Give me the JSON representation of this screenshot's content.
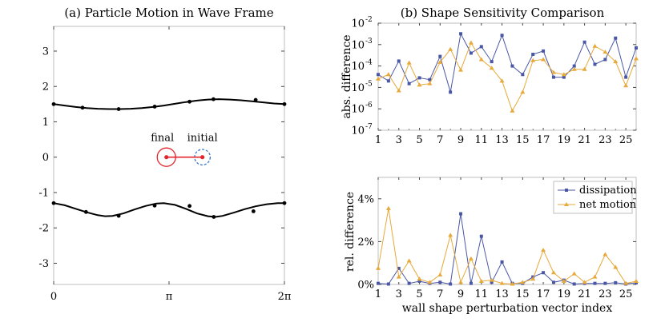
{
  "chart_data": [
    {
      "type": "line",
      "title": "(a) Particle Motion in Wave Frame",
      "xlim": [
        0,
        6.2832
      ],
      "ylim": [
        -3.6,
        3.7
      ],
      "xticks": [
        {
          "value": 0,
          "label": "0"
        },
        {
          "value": 3.1416,
          "label": "π"
        },
        {
          "value": 6.2832,
          "label": "2π"
        }
      ],
      "yticks": [
        {
          "value": 3,
          "label": "3"
        },
        {
          "value": 2,
          "label": "2"
        },
        {
          "value": 1,
          "label": "1"
        },
        {
          "value": 0,
          "label": "0"
        },
        {
          "value": -1,
          "label": "-1"
        },
        {
          "value": -2,
          "label": "-2"
        },
        {
          "value": -3,
          "label": "-3"
        }
      ],
      "upper_wall": {
        "curve": [
          [
            0,
            1.5
          ],
          [
            0.3,
            1.46
          ],
          [
            0.6,
            1.42
          ],
          [
            0.9,
            1.39
          ],
          [
            1.2,
            1.37
          ],
          [
            1.5,
            1.36
          ],
          [
            1.8,
            1.36
          ],
          [
            2.1,
            1.37
          ],
          [
            2.4,
            1.39
          ],
          [
            2.7,
            1.42
          ],
          [
            3.0,
            1.46
          ],
          [
            3.3,
            1.51
          ],
          [
            3.6,
            1.56
          ],
          [
            3.9,
            1.6
          ],
          [
            4.2,
            1.63
          ],
          [
            4.5,
            1.64
          ],
          [
            4.8,
            1.63
          ],
          [
            5.1,
            1.61
          ],
          [
            5.4,
            1.58
          ],
          [
            5.7,
            1.55
          ],
          [
            6.0,
            1.52
          ],
          [
            6.2832,
            1.5
          ]
        ],
        "markers": [
          [
            0,
            1.5
          ],
          [
            0.785,
            1.4
          ],
          [
            1.77,
            1.36
          ],
          [
            2.75,
            1.43
          ],
          [
            3.7,
            1.57
          ],
          [
            4.35,
            1.64
          ],
          [
            5.5,
            1.62
          ],
          [
            6.2832,
            1.5
          ]
        ]
      },
      "lower_wall": {
        "curve": [
          [
            0,
            -1.3
          ],
          [
            0.3,
            -1.36
          ],
          [
            0.6,
            -1.46
          ],
          [
            0.9,
            -1.56
          ],
          [
            1.2,
            -1.64
          ],
          [
            1.4,
            -1.67
          ],
          [
            1.6,
            -1.66
          ],
          [
            1.9,
            -1.59
          ],
          [
            2.2,
            -1.48
          ],
          [
            2.5,
            -1.38
          ],
          [
            2.8,
            -1.31
          ],
          [
            3.0,
            -1.3
          ],
          [
            3.3,
            -1.35
          ],
          [
            3.6,
            -1.46
          ],
          [
            3.9,
            -1.59
          ],
          [
            4.2,
            -1.67
          ],
          [
            4.4,
            -1.69
          ],
          [
            4.6,
            -1.66
          ],
          [
            4.9,
            -1.57
          ],
          [
            5.2,
            -1.47
          ],
          [
            5.5,
            -1.39
          ],
          [
            5.8,
            -1.33
          ],
          [
            6.1,
            -1.3
          ],
          [
            6.2832,
            -1.3
          ]
        ],
        "markers": [
          [
            0,
            -1.3
          ],
          [
            0.88,
            -1.55
          ],
          [
            1.77,
            -1.66
          ],
          [
            2.75,
            -1.37
          ],
          [
            3.7,
            -1.38
          ],
          [
            4.36,
            -1.69
          ],
          [
            5.44,
            -1.53
          ],
          [
            6.2832,
            -1.3
          ]
        ]
      },
      "final": {
        "label": "final",
        "x": 3.07,
        "y": 0.0,
        "radius": 0.26
      },
      "initial": {
        "label": "initial",
        "x": 4.05,
        "y": 0.0,
        "radius": 0.22
      },
      "colors": {
        "wall": "#000000",
        "final": "#e3242b",
        "initial": "#3a78c9"
      }
    },
    {
      "type": "line",
      "title": "(b) Shape Sensitivity Comparison",
      "ylabel": "abs. difference",
      "yscale": "log",
      "ylim": [
        1e-07,
        0.01
      ],
      "xlim": [
        1,
        26
      ],
      "yticks": [
        {
          "value": 1e-07,
          "label": "10"
        },
        {
          "value": 1e-06,
          "label": "10"
        },
        {
          "value": 1e-05,
          "label": "10"
        },
        {
          "value": 0.0001,
          "label": "10"
        },
        {
          "value": 0.001,
          "label": "10"
        },
        {
          "value": 0.01,
          "label": "10"
        }
      ],
      "yexps": [
        "-7",
        "-6",
        "-5",
        "-4",
        "-3",
        "-2"
      ],
      "xticks": [
        1,
        3,
        5,
        7,
        9,
        11,
        13,
        15,
        17,
        19,
        21,
        23,
        25
      ],
      "x": [
        1,
        2,
        3,
        4,
        5,
        6,
        7,
        8,
        9,
        10,
        11,
        12,
        13,
        14,
        15,
        16,
        17,
        18,
        19,
        20,
        21,
        22,
        23,
        24,
        25,
        26
      ],
      "series": [
        {
          "name": "dissipation",
          "color": "#4a57a5",
          "marker": "square",
          "values": [
            4e-05,
            2e-05,
            0.00017,
            1.5e-05,
            2.8e-05,
            2.3e-05,
            0.00028,
            6e-06,
            0.0032,
            0.0004,
            0.0008,
            0.00016,
            0.0027,
            0.0001,
            4e-05,
            0.00035,
            0.0005,
            3e-05,
            3e-05,
            0.0001,
            0.0013,
            0.00012,
            0.0002,
            0.002,
            3e-05,
            0.0007
          ]
        },
        {
          "name": "net motion",
          "color": "#e6a93a",
          "marker": "triangle",
          "values": [
            2.5e-05,
            4e-05,
            7e-06,
            0.00014,
            1.3e-05,
            1.5e-05,
            0.00015,
            0.0006,
            6.5e-05,
            0.0012,
            0.0002,
            8e-05,
            2e-05,
            8e-07,
            6e-06,
            0.00018,
            0.0002,
            5e-05,
            4e-05,
            7e-05,
            7e-05,
            0.00085,
            0.00045,
            0.00016,
            1.2e-05,
            0.00022
          ]
        }
      ]
    },
    {
      "type": "line",
      "ylabel": "rel. difference",
      "xlabel": "wall shape perturbation vector index",
      "xlim": [
        1,
        26
      ],
      "ylim": [
        0,
        5
      ],
      "yticks": [
        {
          "value": 0,
          "label": "0%"
        },
        {
          "value": 2,
          "label": "2%"
        },
        {
          "value": 4,
          "label": "4%"
        }
      ],
      "xticks": [
        1,
        3,
        5,
        7,
        9,
        11,
        13,
        15,
        17,
        19,
        21,
        23,
        25
      ],
      "x": [
        1,
        2,
        3,
        4,
        5,
        6,
        7,
        8,
        9,
        10,
        11,
        12,
        13,
        14,
        15,
        16,
        17,
        18,
        19,
        20,
        21,
        22,
        23,
        24,
        25,
        26
      ],
      "legend": {
        "position": "top-right"
      },
      "series": [
        {
          "name": "dissipation",
          "color": "#4a57a5",
          "marker": "square",
          "values": [
            0.05,
            0.02,
            0.75,
            0.05,
            0.15,
            0.05,
            0.1,
            0.02,
            3.3,
            0.05,
            2.25,
            0.1,
            1.05,
            0.05,
            0.05,
            0.35,
            0.55,
            0.1,
            0.2,
            0.02,
            0.05,
            0.05,
            0.05,
            0.08,
            0.02,
            0.08
          ]
        },
        {
          "name": "net motion",
          "color": "#e6a93a",
          "marker": "triangle",
          "values": [
            0.75,
            3.55,
            0.35,
            1.1,
            0.25,
            0.1,
            0.45,
            2.3,
            0.1,
            1.2,
            0.15,
            0.2,
            0.05,
            0.02,
            0.1,
            0.25,
            1.6,
            0.55,
            0.15,
            0.5,
            0.1,
            0.35,
            1.4,
            0.8,
            0.05,
            0.15
          ]
        }
      ]
    }
  ]
}
